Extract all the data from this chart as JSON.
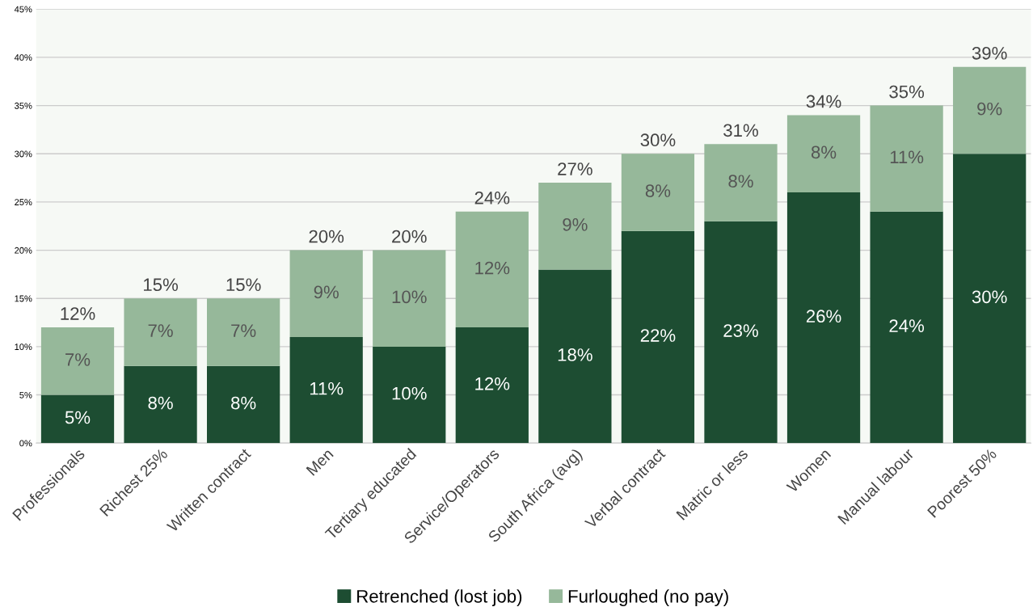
{
  "chart_data": {
    "type": "bar",
    "stacked": true,
    "grid": "y",
    "legend": "bottom",
    "categories": [
      "Professionals",
      "Richest 25%",
      "Written contract",
      "Men",
      "Tertiary educated",
      "Service/Operators",
      "South Africa (avg)",
      "Verbal contract",
      "Matric or less",
      "Women",
      "Manual labour",
      "Poorest 50%"
    ],
    "series": [
      {
        "name": "Retrenched (lost job)",
        "color": "#1d4d32",
        "values": [
          5,
          8,
          8,
          11,
          10,
          12,
          18,
          22,
          23,
          26,
          24,
          30
        ],
        "value_labels": [
          "5%",
          "8%",
          "8%",
          "11%",
          "10%",
          "12%",
          "18%",
          "22%",
          "23%",
          "26%",
          "24%",
          "30%"
        ]
      },
      {
        "name": "Furloughed (no pay)",
        "color": "#96b89a",
        "values": [
          7,
          7,
          7,
          9,
          10,
          12,
          9,
          8,
          8,
          8,
          11,
          9
        ],
        "value_labels": [
          "7%",
          "7%",
          "7%",
          "9%",
          "10%",
          "12%",
          "9%",
          "8%",
          "8%",
          "8%",
          "11%",
          "9%"
        ]
      }
    ],
    "totals": [
      "12%",
      "15%",
      "15%",
      "20%",
      "20%",
      "24%",
      "27%",
      "30%",
      "31%",
      "34%",
      "35%",
      "39%"
    ],
    "ylim": [
      0,
      45
    ],
    "yticks": [
      {
        "value": 0,
        "label": "0%"
      },
      {
        "value": 5,
        "label": "5%"
      },
      {
        "value": 10,
        "label": "10%"
      },
      {
        "value": 15,
        "label": "15%"
      },
      {
        "value": 20,
        "label": "20%"
      },
      {
        "value": 25,
        "label": "25%"
      },
      {
        "value": 30,
        "label": "30%"
      },
      {
        "value": 35,
        "label": "35%"
      },
      {
        "value": 40,
        "label": "40%"
      },
      {
        "value": 45,
        "label": "45%"
      }
    ]
  }
}
